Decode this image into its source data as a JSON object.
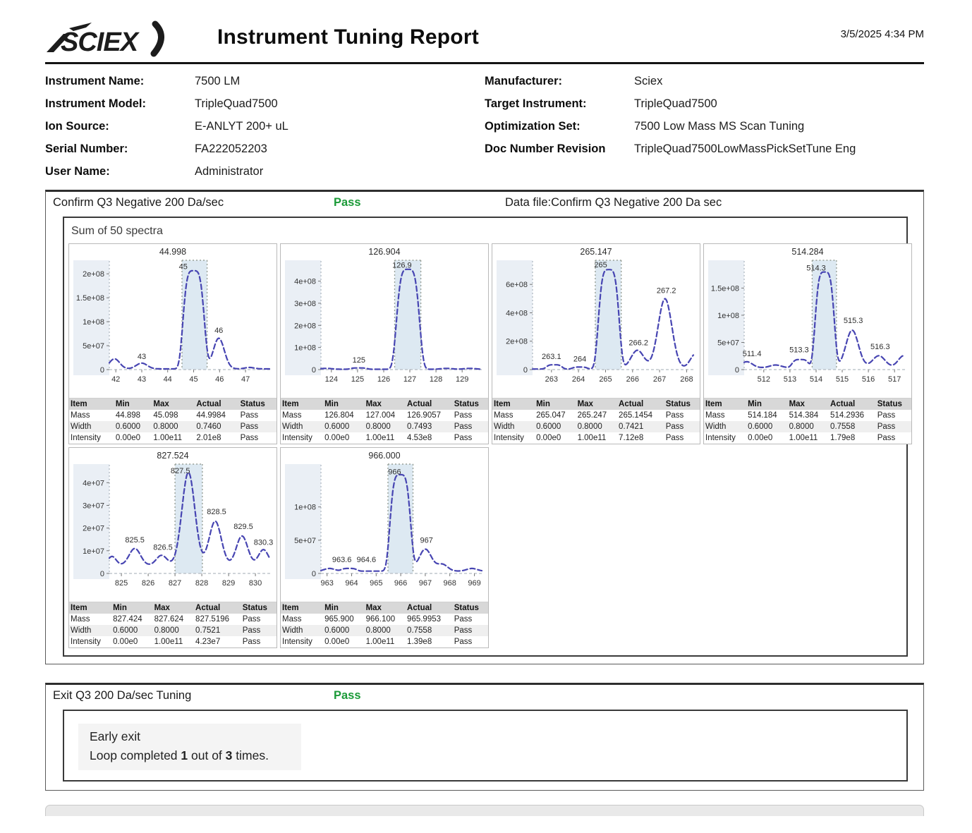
{
  "header": {
    "logo_text": "SCIEX",
    "title": "Instrument Tuning Report",
    "datetime": "3/5/2025 4:34 PM"
  },
  "info": {
    "left": [
      {
        "label": "Instrument Name:",
        "value": "7500  LM"
      },
      {
        "label": "Instrument Model:",
        "value": "TripleQuad7500"
      },
      {
        "label": "Ion Source:",
        "value": "E-ANLYT 200+ uL"
      },
      {
        "label": "Serial Number:",
        "value": "FA222052203"
      },
      {
        "label": "User Name:",
        "value": "Administrator"
      }
    ],
    "right": [
      {
        "label": "Manufacturer:",
        "value": "Sciex"
      },
      {
        "label": "Target Instrument:",
        "value": "TripleQuad7500"
      },
      {
        "label": "Optimization Set:",
        "value": "7500 Low Mass MS Scan Tuning"
      },
      {
        "label": "Doc Number Revision",
        "value": "TripleQuad7500LowMassPickSetTune Eng"
      }
    ]
  },
  "section1": {
    "title": "Confirm Q3 Negative 200 Da/sec",
    "status": "Pass",
    "datafile": "Data file:Confirm Q3 Negative 200 Da sec",
    "spectra_label": "Sum of 50 spectra"
  },
  "section2": {
    "title": "Exit Q3 200 Da/sec Tuning",
    "status": "Pass",
    "line1": "Early exit",
    "loop_prefix": "Loop completed ",
    "loop_done": "1",
    "loop_mid": " out of ",
    "loop_total": "3",
    "loop_suffix": " times."
  },
  "colors": {
    "pass_green": "#1B9A38",
    "curve": "#4745B2",
    "shade": "#DDE9F2",
    "axis_strip": "#EAEFF5",
    "dotted": "#98A098"
  },
  "table_headers": [
    "Item",
    "Min",
    "Max",
    "Actual",
    "Status"
  ],
  "chart_data": [
    {
      "type": "line",
      "title": "44.998",
      "xlim": [
        41.75,
        47.95
      ],
      "xticks": [
        42,
        43,
        44,
        45,
        46,
        47
      ],
      "ylim": [
        0,
        218000000.0
      ],
      "yticks": [
        {
          "v": 0,
          "t": "0"
        },
        {
          "v": 50000000.0,
          "t": "5e+07"
        },
        {
          "v": 100000000.0,
          "t": "1e+08"
        },
        {
          "v": 150000000.0,
          "t": "1.5e+08"
        },
        {
          "v": 200000000.0,
          "t": "2e+08"
        }
      ],
      "shade": [
        44.55,
        45.52
      ],
      "baseline": 1500000.0,
      "peaks": [
        {
          "c": 41.95,
          "h": 21000000.0,
          "w": 0.28,
          "f": 0
        },
        {
          "c": 43.0,
          "h": 12000000.0,
          "w": 0.3,
          "f": 0
        },
        {
          "c": 45.0,
          "h": 205000000.0,
          "w": 0.45,
          "f": 1
        },
        {
          "c": 45.97,
          "h": 64000000.0,
          "w": 0.3,
          "f": 0
        },
        {
          "c": 47.15,
          "h": 3000000.0,
          "w": 0.25,
          "f": 0
        }
      ],
      "labels": [
        {
          "text": "43",
          "x": 43.0,
          "y": 19000000.0
        },
        {
          "text": "45",
          "x": 44.6,
          "y": 207000000.0
        },
        {
          "text": "46",
          "x": 45.97,
          "y": 74000000.0
        }
      ],
      "table": [
        [
          "Mass",
          "44.898",
          "45.098",
          "44.9984",
          "Pass"
        ],
        [
          "Width",
          "0.6000",
          "0.8000",
          "0.7460",
          "Pass"
        ],
        [
          "Intensity",
          "0.00e0",
          "1.00e11",
          "2.01e8",
          "Pass"
        ]
      ]
    },
    {
      "type": "line",
      "title": "126.904",
      "xlim": [
        123.6,
        129.75
      ],
      "xticks": [
        124,
        125,
        126,
        127,
        128,
        129
      ],
      "ylim": [
        0,
        472000000.0
      ],
      "yticks": [
        {
          "v": 0,
          "t": "0"
        },
        {
          "v": 100000000.0,
          "t": "1e+08"
        },
        {
          "v": 200000000.0,
          "t": "2e+08"
        },
        {
          "v": 300000000.0,
          "t": "3e+08"
        },
        {
          "v": 400000000.0,
          "t": "4e+08"
        }
      ],
      "shade": [
        126.42,
        127.42
      ],
      "baseline": 1500000.0,
      "peaks": [
        {
          "c": 123.8,
          "h": 4000000.0,
          "w": 0.3,
          "f": 0
        },
        {
          "c": 125.05,
          "h": 6000000.0,
          "w": 0.35,
          "f": 1
        },
        {
          "c": 126.93,
          "h": 452000000.0,
          "w": 0.48,
          "f": 1
        },
        {
          "c": 128.4,
          "h": 4000000.0,
          "w": 0.3,
          "f": 0
        },
        {
          "c": 129.3,
          "h": 4000000.0,
          "w": 0.3,
          "f": 0
        }
      ],
      "labels": [
        {
          "text": "125",
          "x": 125.05,
          "y": 26000000.0
        },
        {
          "text": "126.9",
          "x": 126.7,
          "y": 455000000.0
        }
      ],
      "table": [
        [
          "Mass",
          "126.804",
          "127.004",
          "126.9057",
          "Pass"
        ],
        [
          "Width",
          "0.6000",
          "0.8000",
          "0.7493",
          "Pass"
        ],
        [
          "Intensity",
          "0.00e0",
          "1.00e11",
          "4.53e8",
          "Pass"
        ]
      ]
    },
    {
      "type": "line",
      "title": "265.147",
      "xlim": [
        262.3,
        268.25
      ],
      "xticks": [
        263,
        264,
        265,
        266,
        267,
        268
      ],
      "ylim": [
        0,
        735000000.0
      ],
      "yticks": [
        {
          "v": 0,
          "t": "0"
        },
        {
          "v": 200000000.0,
          "t": "2e+08"
        },
        {
          "v": 400000000.0,
          "t": "4e+08"
        },
        {
          "v": 600000000.0,
          "t": "6e+08"
        }
      ],
      "shade": [
        264.62,
        265.58
      ],
      "baseline": 4000000.0,
      "peaks": [
        {
          "c": 263.1,
          "h": 30000000.0,
          "w": 0.32,
          "f": 1
        },
        {
          "c": 264.05,
          "h": 14000000.0,
          "w": 0.3,
          "f": 1
        },
        {
          "c": 265.12,
          "h": 700000000.0,
          "w": 0.42,
          "f": 1
        },
        {
          "c": 266.18,
          "h": 132000000.0,
          "w": 0.34,
          "f": 0
        },
        {
          "c": 267.2,
          "h": 495000000.0,
          "w": 0.36,
          "f": 0
        },
        {
          "c": 268.35,
          "h": 110000000.0,
          "w": 0.3,
          "f": 0
        }
      ],
      "labels": [
        {
          "text": "263.1",
          "x": 263.0,
          "y": 65000000.0
        },
        {
          "text": "264",
          "x": 264.05,
          "y": 48000000.0
        },
        {
          "text": "265",
          "x": 264.82,
          "y": 710000000.0
        },
        {
          "text": "266.2",
          "x": 266.22,
          "y": 162000000.0
        },
        {
          "text": "267.2",
          "x": 267.25,
          "y": 530000000.0
        }
      ],
      "table": [
        [
          "Mass",
          "265.047",
          "265.247",
          "265.1454",
          "Pass"
        ],
        [
          "Width",
          "0.6000",
          "0.8000",
          "0.7421",
          "Pass"
        ],
        [
          "Intensity",
          "0.00e0",
          "1.00e11",
          "7.12e8",
          "Pass"
        ]
      ]
    },
    {
      "type": "line",
      "title": "514.284",
      "xlim": [
        511.25,
        517.4
      ],
      "xticks": [
        512,
        513,
        514,
        515,
        516,
        517
      ],
      "ylim": [
        0,
        192000000.0
      ],
      "yticks": [
        {
          "v": 0,
          "t": "0"
        },
        {
          "v": 50000000.0,
          "t": "5e+07"
        },
        {
          "v": 100000000.0,
          "t": "1e+08"
        },
        {
          "v": 150000000.0,
          "t": "1.5e+08"
        }
      ],
      "shade": [
        513.85,
        514.78
      ],
      "baseline": 3500000.0,
      "peaks": [
        {
          "c": 511.35,
          "h": 11000000.0,
          "w": 0.3,
          "f": 0
        },
        {
          "c": 512.45,
          "h": 5000000.0,
          "w": 0.3,
          "f": 0
        },
        {
          "c": 513.4,
          "h": 15000000.0,
          "w": 0.35,
          "f": 1
        },
        {
          "c": 514.33,
          "h": 176000000.0,
          "w": 0.4,
          "f": 1
        },
        {
          "c": 515.38,
          "h": 69000000.0,
          "w": 0.34,
          "f": 0
        },
        {
          "c": 516.4,
          "h": 22000000.0,
          "w": 0.34,
          "f": 0
        },
        {
          "c": 517.35,
          "h": 22000000.0,
          "w": 0.3,
          "f": 0
        }
      ],
      "labels": [
        {
          "text": "511.4",
          "x": 511.55,
          "y": 22000000.0
        },
        {
          "text": "513.3",
          "x": 513.35,
          "y": 29000000.0
        },
        {
          "text": "514.3",
          "x": 514.0,
          "y": 180000000.0
        },
        {
          "text": "515.3",
          "x": 515.42,
          "y": 83000000.0
        },
        {
          "text": "516.3",
          "x": 516.45,
          "y": 35000000.0
        }
      ],
      "table": [
        [
          "Mass",
          "514.184",
          "514.384",
          "514.2936",
          "Pass"
        ],
        [
          "Width",
          "0.6000",
          "0.8000",
          "0.7558",
          "Pass"
        ],
        [
          "Intensity",
          "0.00e0",
          "1.00e11",
          "1.79e8",
          "Pass"
        ]
      ]
    },
    {
      "type": "line",
      "title": "827.524",
      "xlim": [
        824.55,
        830.55
      ],
      "xticks": [
        825,
        826,
        827,
        828,
        829,
        830
      ],
      "ylim": [
        0,
        46000000.0
      ],
      "yticks": [
        {
          "v": 0,
          "t": "0"
        },
        {
          "v": 10000000.0,
          "t": "1e+07"
        },
        {
          "v": 20000000.0,
          "t": "2e+07"
        },
        {
          "v": 30000000.0,
          "t": "3e+07"
        },
        {
          "v": 40000000.0,
          "t": "4e+07"
        }
      ],
      "shade": [
        827.0,
        828.02
      ],
      "baseline": 3500000.0,
      "peaks": [
        {
          "c": 824.65,
          "h": 4000000.0,
          "w": 0.22,
          "f": 0
        },
        {
          "c": 825.5,
          "h": 7500000.0,
          "w": 0.3,
          "f": 0
        },
        {
          "c": 826.5,
          "h": 4500000.0,
          "w": 0.28,
          "f": 0
        },
        {
          "c": 827.5,
          "h": 41000000.0,
          "w": 0.34,
          "f": 0
        },
        {
          "c": 828.5,
          "h": 19500000.0,
          "w": 0.32,
          "f": 0
        },
        {
          "c": 829.5,
          "h": 13000000.0,
          "w": 0.3,
          "f": 0
        },
        {
          "c": 830.3,
          "h": 7000000.0,
          "w": 0.26,
          "f": 0
        }
      ],
      "labels": [
        {
          "text": "825.5",
          "x": 825.5,
          "y": 13000000.0
        },
        {
          "text": "826.5",
          "x": 826.55,
          "y": 9800000.0
        },
        {
          "text": "827.5",
          "x": 827.2,
          "y": 43500000.0
        },
        {
          "text": "828.5",
          "x": 828.55,
          "y": 25500000.0
        },
        {
          "text": "829.5",
          "x": 829.55,
          "y": 19000000.0
        },
        {
          "text": "830.3",
          "x": 830.3,
          "y": 12000000.0
        }
      ],
      "table": [
        [
          "Mass",
          "827.424",
          "827.624",
          "827.5196",
          "Pass"
        ],
        [
          "Width",
          "0.6000",
          "0.8000",
          "0.7521",
          "Pass"
        ],
        [
          "Intensity",
          "0.00e0",
          "1.00e11",
          "4.23e7",
          "Pass"
        ]
      ]
    },
    {
      "type": "line",
      "title": "966.000",
      "xlim": [
        962.75,
        969.3
      ],
      "xticks": [
        963,
        964,
        965,
        966,
        967,
        968,
        969
      ],
      "ylim": [
        0,
        157000000.0
      ],
      "yticks": [
        {
          "v": 0,
          "t": "0"
        },
        {
          "v": 50000000.0,
          "t": "5e+07"
        },
        {
          "v": 100000000.0,
          "t": "1e+08"
        }
      ],
      "shade": [
        965.48,
        966.5
      ],
      "baseline": 3500000.0,
      "peaks": [
        {
          "c": 963.1,
          "h": 4000000.0,
          "w": 0.3,
          "f": 0
        },
        {
          "c": 963.9,
          "h": 4000000.0,
          "w": 0.35,
          "f": 1
        },
        {
          "c": 965.98,
          "h": 145000000.0,
          "w": 0.46,
          "f": 1
        },
        {
          "c": 967.0,
          "h": 33000000.0,
          "w": 0.36,
          "f": 0
        },
        {
          "c": 967.7,
          "h": 10000000.0,
          "w": 0.3,
          "f": 0
        },
        {
          "c": 968.9,
          "h": 4000000.0,
          "w": 0.3,
          "f": 0
        }
      ],
      "labels": [
        {
          "text": "963.6",
          "x": 963.6,
          "y": 15000000.0
        },
        {
          "text": "964.6",
          "x": 964.6,
          "y": 15000000.0
        },
        {
          "text": "966",
          "x": 965.75,
          "y": 147000000.0
        },
        {
          "text": "967",
          "x": 967.05,
          "y": 44000000.0
        }
      ],
      "table": [
        [
          "Mass",
          "965.900",
          "966.100",
          "965.9953",
          "Pass"
        ],
        [
          "Width",
          "0.6000",
          "0.8000",
          "0.7558",
          "Pass"
        ],
        [
          "Intensity",
          "0.00e0",
          "1.00e11",
          "1.39e8",
          "Pass"
        ]
      ]
    }
  ]
}
